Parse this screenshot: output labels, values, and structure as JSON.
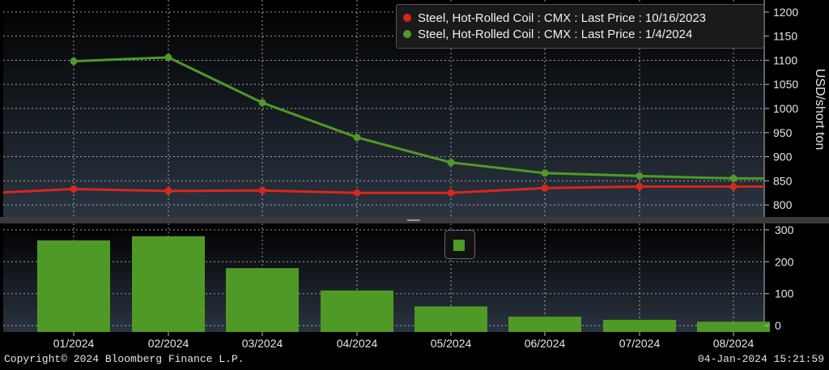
{
  "chart_data": [
    {
      "type": "line",
      "x": [
        "01/2024",
        "02/2024",
        "03/2024",
        "04/2024",
        "05/2024",
        "06/2024",
        "07/2024",
        "08/2024"
      ],
      "series": [
        {
          "name": "Steel, Hot-Rolled Coil : CMX : Last Price : 10/16/2023",
          "color": "#d8261e",
          "values": [
            833,
            829,
            830,
            825,
            825,
            835,
            838,
            838
          ]
        },
        {
          "name": "Steel, Hot-Rolled Coil : CMX : Last Price : 1/4/2024",
          "color": "#4f9a26",
          "values": [
            1098,
            1106,
            1012,
            940,
            888,
            866,
            860,
            855
          ]
        }
      ],
      "ylabel": "USD/short ton",
      "ylim": [
        775,
        1225
      ],
      "yticks": [
        800,
        850,
        900,
        950,
        1000,
        1050,
        1100,
        1150,
        1200
      ],
      "grid": true,
      "legend": "top-right"
    },
    {
      "type": "bar",
      "categories": [
        "01/2024",
        "02/2024",
        "03/2024",
        "04/2024",
        "05/2024",
        "06/2024",
        "07/2024",
        "08/2024"
      ],
      "values": [
        267,
        280,
        180,
        110,
        60,
        28,
        18,
        12
      ],
      "color": "#4f9a26",
      "ylim": [
        -20,
        320
      ],
      "yticks": [
        0,
        100,
        200,
        300
      ],
      "grid": true
    }
  ],
  "footer": {
    "copyright": "Copyright© 2024 Bloomberg Finance L.P.",
    "timestamp": "04-Jan-2024 15:21:59"
  }
}
